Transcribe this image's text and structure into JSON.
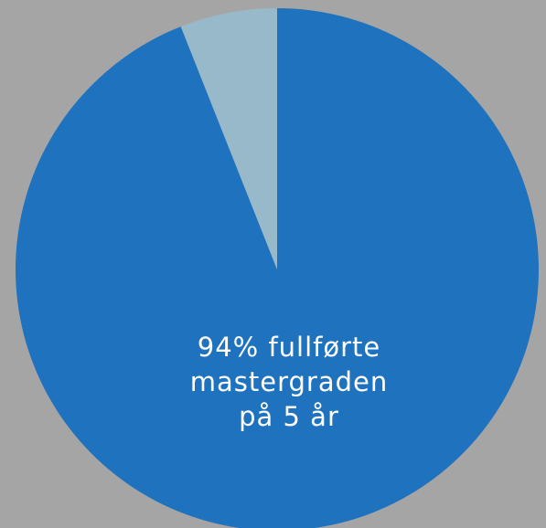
{
  "chart_data": {
    "type": "pie",
    "values": [
      94,
      6
    ],
    "colors": [
      "#1f72bd",
      "#98b9c9"
    ],
    "annotation": [
      "94% fullførte",
      "mastergraden",
      "på 5 år"
    ]
  }
}
